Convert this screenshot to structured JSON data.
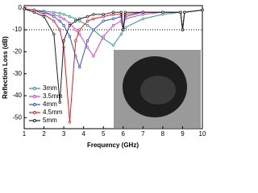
{
  "chart_data": {
    "type": "line",
    "x_label": "Frequency (GHz)",
    "y_label": "Reflection Loss (dB)",
    "x": [
      1,
      1.5,
      2,
      2.5,
      2.8,
      3,
      3.3,
      3.6,
      3.8,
      4.2,
      4.5,
      5,
      5.5,
      5.9,
      6,
      6.1,
      7,
      8,
      8.9,
      9,
      9.1,
      10
    ],
    "series": [
      {
        "name": "3mm",
        "color": "#2a9a8a",
        "values": [
          -0.5,
          -1,
          -1.5,
          -2,
          -2.5,
          -3,
          -4,
          -5,
          -6,
          -8,
          -10,
          -14,
          -17,
          -12,
          -10,
          -9,
          -5,
          -3,
          -2,
          -10,
          -2,
          -1
        ]
      },
      {
        "name": "3.5mm",
        "color": "#d040d0",
        "values": [
          -0.5,
          -1,
          -2,
          -3,
          -4,
          -5,
          -7,
          -10,
          -12,
          -18,
          -22,
          -13,
          -8,
          -6,
          -10,
          -5,
          -3,
          -2,
          -2,
          -10,
          -2,
          -1
        ]
      },
      {
        "name": "4mm",
        "color": "#3050e0",
        "values": [
          -0.5,
          -1,
          -2,
          -4,
          -6,
          -8,
          -13,
          -22,
          -27,
          -15,
          -10,
          -6,
          -5,
          -4,
          -10,
          -4,
          -2,
          -2,
          -2,
          -10,
          -2,
          -1
        ]
      },
      {
        "name": "4.5mm",
        "color": "#e02020",
        "values": [
          -0.5,
          -1,
          -3,
          -6,
          -10,
          -18,
          -52,
          -15,
          -10,
          -6,
          -5,
          -4,
          -3,
          -3,
          -10,
          -3,
          -2,
          -2,
          -2,
          -10,
          -2,
          -1
        ]
      },
      {
        "name": "5mm",
        "color": "#222222",
        "values": [
          -0.5,
          -2,
          -4,
          -12,
          -43,
          -15,
          -8,
          -6,
          -5,
          -4,
          -3,
          -3,
          -2,
          -2,
          -10,
          -2,
          -2,
          -2,
          -2,
          -10,
          -2,
          -1
        ]
      }
    ],
    "xlim": [
      1,
      10
    ],
    "xticks": [
      1,
      2,
      3,
      4,
      5,
      6,
      7,
      8,
      9,
      10
    ],
    "ylim": [
      -55,
      1
    ],
    "yticks": [
      0,
      -10,
      -20,
      -30,
      -40,
      -50
    ],
    "reference_line": -10,
    "grid": false,
    "legend": "lower left"
  }
}
